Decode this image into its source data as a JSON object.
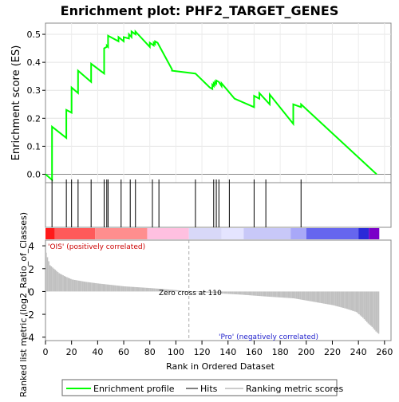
{
  "title": "Enrichment plot: PHF2_TARGET_GENES",
  "chart_data": {
    "type": "line",
    "title": "Enrichment plot: PHF2_TARGET_GENES",
    "top_panel": {
      "ylabel": "Enrichment score (ES)",
      "ylim": [
        -0.03,
        0.54
      ],
      "yticks": [
        "0.0",
        "0.1",
        "0.2",
        "0.3",
        "0.4",
        "0.5"
      ],
      "ytick_values": [
        0.0,
        0.1,
        0.2,
        0.3,
        0.4,
        0.5
      ],
      "grid": true,
      "line_color": "#00ff00",
      "series": [
        {
          "name": "Enrichment profile",
          "x": [
            0,
            5,
            5,
            16,
            16,
            20,
            20,
            25,
            25,
            35,
            35,
            45,
            45,
            47,
            47,
            48,
            48,
            56,
            56,
            60,
            60,
            64,
            64,
            66,
            66,
            69,
            69,
            80,
            80,
            83,
            83,
            84,
            84,
            86,
            86,
            97,
            97,
            115,
            115,
            126,
            126,
            128,
            128,
            129,
            129,
            130,
            130,
            131,
            131,
            133,
            133,
            135,
            135,
            145,
            145,
            160,
            160,
            164,
            164,
            172,
            172,
            190,
            190,
            196,
            196,
            254
          ],
          "y": [
            0.0,
            -0.02,
            0.17,
            0.13,
            0.23,
            0.22,
            0.31,
            0.29,
            0.37,
            0.33,
            0.395,
            0.36,
            0.45,
            0.455,
            0.46,
            0.455,
            0.495,
            0.475,
            0.49,
            0.475,
            0.49,
            0.485,
            0.5,
            0.49,
            0.51,
            0.5,
            0.51,
            0.455,
            0.47,
            0.46,
            0.47,
            0.465,
            0.475,
            0.47,
            0.47,
            0.375,
            0.37,
            0.36,
            0.36,
            0.31,
            0.31,
            0.305,
            0.32,
            0.315,
            0.325,
            0.32,
            0.33,
            0.325,
            0.335,
            0.33,
            0.33,
            0.315,
            0.325,
            0.27,
            0.27,
            0.24,
            0.28,
            0.27,
            0.29,
            0.25,
            0.285,
            0.18,
            0.25,
            0.24,
            0.25,
            0.0
          ]
        }
      ]
    },
    "hits": [
      5,
      16,
      20,
      25,
      35,
      45,
      47,
      48,
      58,
      65,
      69,
      82,
      87,
      115,
      129,
      131,
      133,
      141,
      160,
      169,
      196
    ],
    "bar_legend": {
      "positive_label": "'OIS' (positively correlated)",
      "negative_label": "'Pro' (negatively correlated)",
      "segment_bounds": [
        0,
        7,
        38,
        78,
        110,
        135,
        152,
        188,
        200,
        240,
        248,
        256
      ],
      "segment_colors": [
        "#ff1a1a",
        "#ff5a5a",
        "#ff8e8e",
        "#ffc0e0",
        "#d8d8f8",
        "#e4e4ff",
        "#c8c8f8",
        "#a8a8f8",
        "#6666ee",
        "#2a2ad8",
        "#7a00c8"
      ]
    },
    "bottom_panel": {
      "ylabel": "Ranked list metric (log2_Ratio_of_Classes)",
      "xlabel": "Rank in Ordered Dataset",
      "ylim": [
        -4.3,
        4.5
      ],
      "yticks": [
        "4",
        "2",
        "0",
        "-2",
        "-4"
      ],
      "ytick_values": [
        4,
        2,
        0,
        -2,
        -4
      ],
      "xlim": [
        0,
        265
      ],
      "xticks": [
        "0",
        "20",
        "40",
        "60",
        "80",
        "100",
        "120",
        "140",
        "160",
        "180",
        "200",
        "220",
        "240",
        "260"
      ],
      "xtick_values": [
        0,
        20,
        40,
        60,
        80,
        100,
        120,
        140,
        160,
        180,
        200,
        220,
        240,
        260
      ],
      "zero_cross_label": "Zero cross at 110",
      "zero_cross": 110,
      "metric_control_points": {
        "rank": [
          0,
          1,
          3,
          6,
          10,
          15,
          20,
          30,
          40,
          60,
          80,
          100,
          110,
          130,
          150,
          170,
          190,
          200,
          210,
          220,
          230,
          238,
          243,
          247,
          250,
          253,
          256
        ],
        "value": [
          3.4,
          3.0,
          2.3,
          2.0,
          1.6,
          1.3,
          1.05,
          0.85,
          0.7,
          0.45,
          0.3,
          0.12,
          0.0,
          -0.15,
          -0.28,
          -0.45,
          -0.6,
          -0.8,
          -1.0,
          -1.2,
          -1.5,
          -1.8,
          -2.3,
          -2.8,
          -3.1,
          -3.5,
          -3.8
        ]
      }
    },
    "legend": {
      "entries": [
        "Enrichment profile",
        "Hits",
        "Ranking metric scores"
      ]
    }
  }
}
